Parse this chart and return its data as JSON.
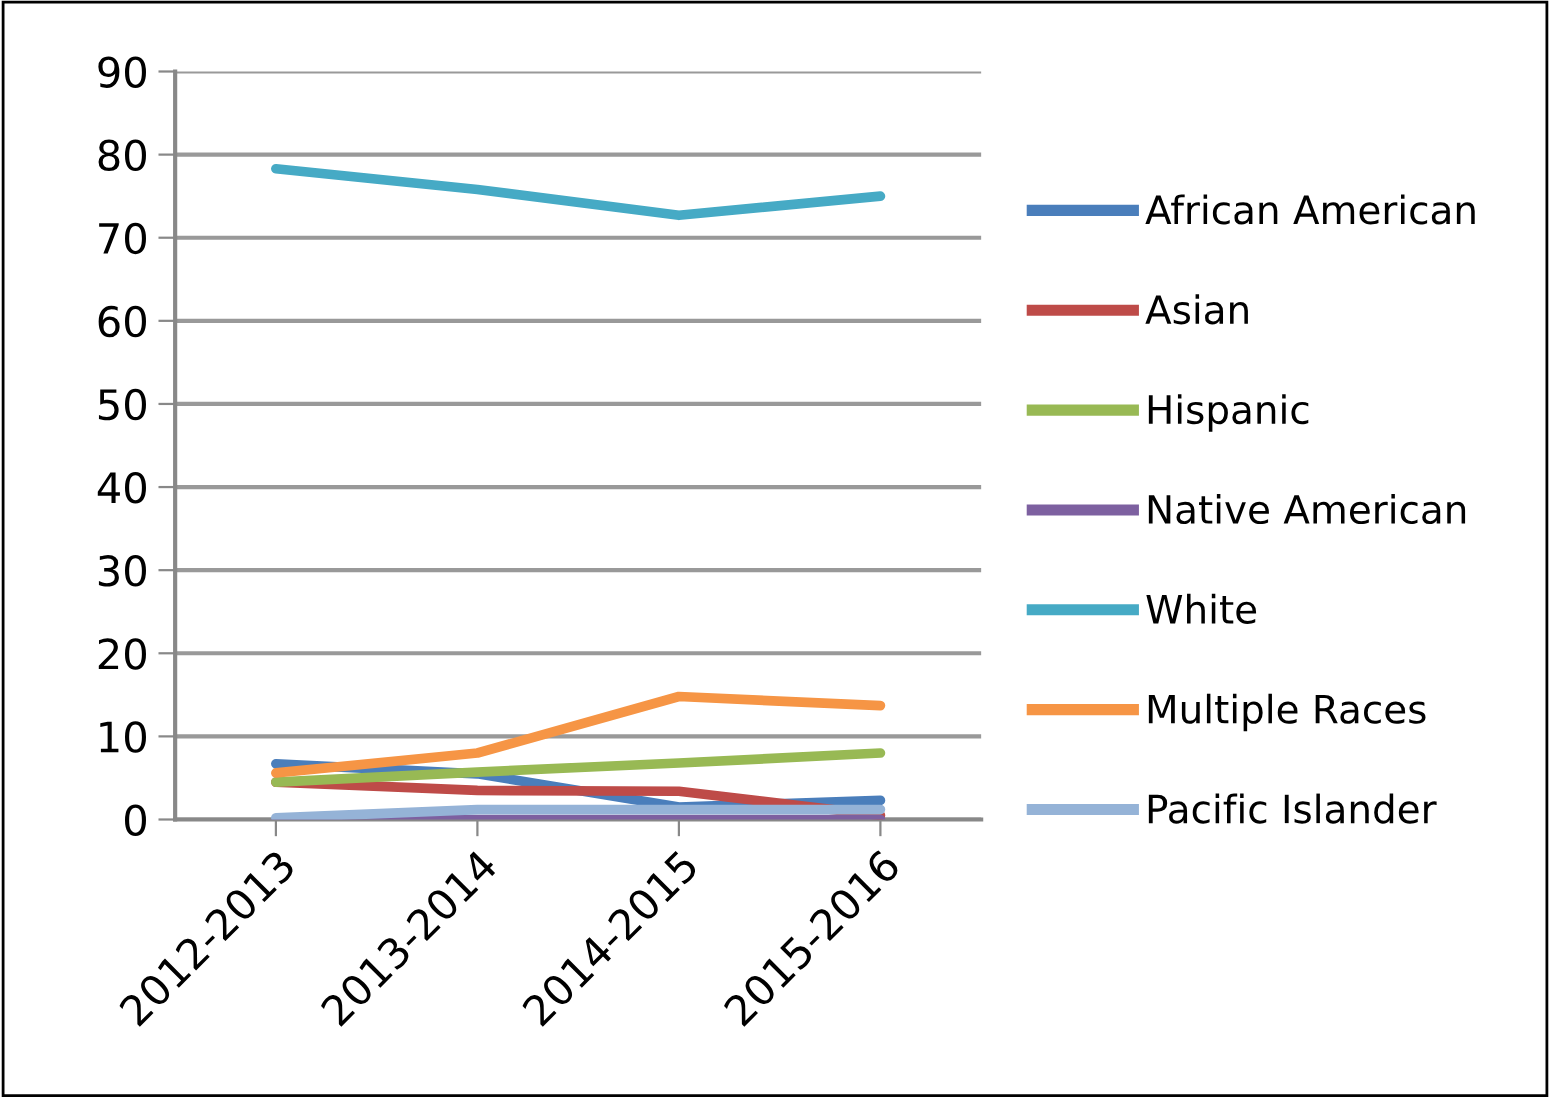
{
  "chart_data": {
    "type": "line",
    "categories": [
      "2012-2013",
      "2013-2014",
      "2014-2015",
      "2015-2016"
    ],
    "ylim": [
      0,
      90
    ],
    "yticks": [
      0,
      10,
      20,
      30,
      40,
      50,
      60,
      70,
      80,
      90
    ],
    "grid": "y",
    "legend": "right",
    "marker": "none",
    "line_style": "solid",
    "series": [
      {
        "name": "African American",
        "color": "#4a7ebb",
        "values": [
          6.7,
          5.5,
          1.5,
          2.3
        ]
      },
      {
        "name": "Asian",
        "color": "#be4b48",
        "values": [
          4.5,
          3.5,
          3.4,
          0.5
        ]
      },
      {
        "name": "Hispanic",
        "color": "#98b954",
        "values": [
          4.5,
          5.7,
          6.8,
          8
        ]
      },
      {
        "name": "Native American",
        "color": "#7d60a0",
        "values": [
          0,
          0,
          0,
          0
        ]
      },
      {
        "name": "White",
        "color": "#46aac5",
        "values": [
          78.3,
          75.8,
          72.7,
          75
        ]
      },
      {
        "name": "Multiple Races",
        "color": "#f69545",
        "values": [
          5.6,
          8,
          14.8,
          13.7
        ]
      },
      {
        "name": "Pacific Islander",
        "color": "#95b3d7",
        "values": [
          0.2,
          1.2,
          1.2,
          1.2
        ]
      }
    ]
  }
}
